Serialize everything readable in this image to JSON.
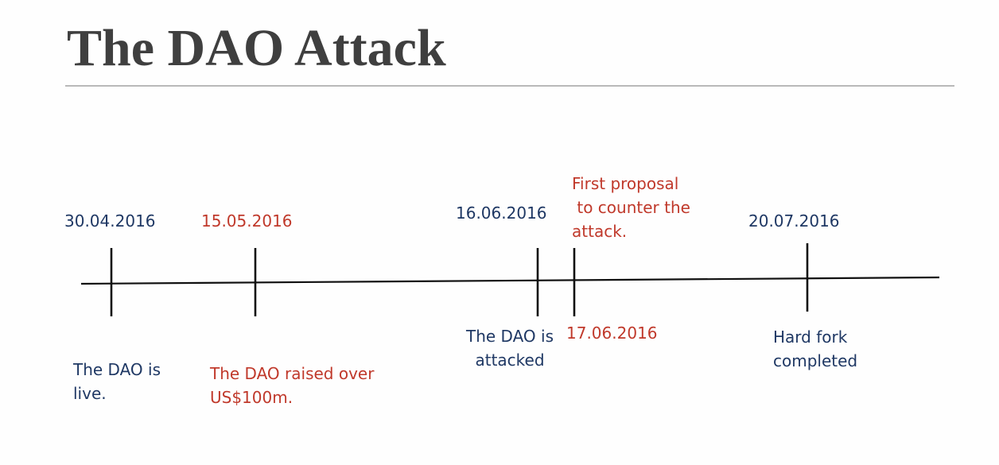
{
  "slide": {
    "title": "The DAO Attack"
  },
  "colors": {
    "navy": "#1f3864",
    "red": "#c0392b",
    "line": "#111111",
    "title": "#3f3f3f",
    "rule": "#b9b9b9"
  },
  "events": [
    {
      "id": "1",
      "date": "30.04.2016",
      "description": "The DAO is\nlive.",
      "date_color": "navy",
      "description_color": "navy"
    },
    {
      "id": "2",
      "date": "15.05.2016",
      "description": "The DAO raised over\nUS$100m.",
      "date_color": "red",
      "description_color": "red"
    },
    {
      "id": "3",
      "date": "16.06.2016",
      "description": "The DAO is\nattacked",
      "date_color": "navy",
      "description_color": "navy"
    },
    {
      "id": "4",
      "date": "17.06.2016",
      "description": "First proposal\n to counter the\nattack.",
      "date_color": "red",
      "description_color": "red"
    },
    {
      "id": "5",
      "date": "20.07.2016",
      "description": "Hard fork\ncompleted",
      "date_color": "navy",
      "description_color": "navy"
    }
  ]
}
